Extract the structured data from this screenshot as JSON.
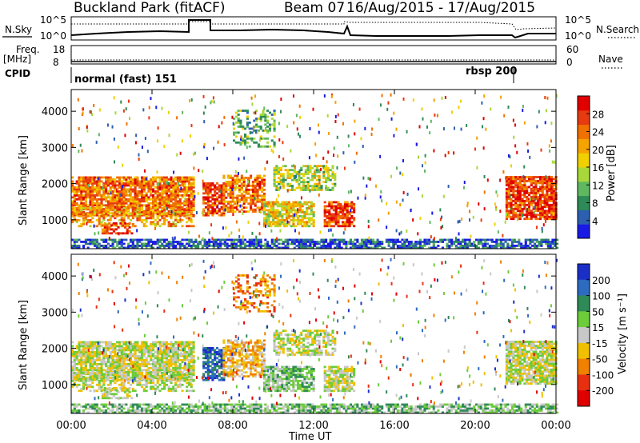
{
  "header": {
    "station": "Buckland Park (fitACF)",
    "beam": "Beam 07",
    "dates": "16/Aug/2015 - 17/Aug/2015"
  },
  "panel_labels": {
    "nsky": "N.Sky",
    "nsearch": "N.Search",
    "freq_top": "Freq.",
    "freq_unit": "[MHz]",
    "nave": "Nave",
    "cpid": "CPID",
    "cpid_left": "normal (fast) 151",
    "cpid_right": "rbsp 200"
  },
  "noise_axis": {
    "left": [
      "10^5",
      "10^0"
    ],
    "right": [
      "10^5",
      "10^0"
    ]
  },
  "freq_axis": {
    "left": [
      "18",
      "8"
    ],
    "right": [
      "60",
      "0"
    ]
  },
  "chart_data": [
    {
      "type": "heatmap",
      "title": "Power",
      "ylabel": "Slant Range [km]",
      "xlabel": "",
      "yticks": [
        "1000",
        "2000",
        "3000",
        "4000"
      ],
      "ylim": [
        200,
        4600
      ],
      "colorbar_label": "Power [dB]",
      "colorbar_ticks": [
        "4",
        "8",
        "12",
        "16",
        "20",
        "24",
        "28"
      ],
      "colors": [
        "#1a1ae6",
        "#2d5fb0",
        "#2e8b57",
        "#5fb85f",
        "#a8d83a",
        "#f0d000",
        "#f5a300",
        "#f07000",
        "#e83a10",
        "#e00000"
      ]
    },
    {
      "type": "heatmap",
      "title": "Velocity",
      "ylabel": "Slant Range [km]",
      "xlabel": "Time UT",
      "xticks": [
        "00:00",
        "04:00",
        "08:00",
        "12:00",
        "16:00",
        "20:00",
        "00:00"
      ],
      "yticks": [
        "1000",
        "2000",
        "3000",
        "4000"
      ],
      "ylim": [
        200,
        4600
      ],
      "colorbar_label": "Velocity [m s⁻¹]",
      "colorbar_ticks": [
        "200",
        "100",
        "50",
        "15",
        "-15",
        "-50",
        "-100",
        "-200"
      ],
      "colors": [
        "#1a2fc8",
        "#2d6bc0",
        "#2e8b57",
        "#6ccc3a",
        "#c8c8c8",
        "#f0c000",
        "#f08000",
        "#e83010",
        "#e00000"
      ]
    }
  ]
}
